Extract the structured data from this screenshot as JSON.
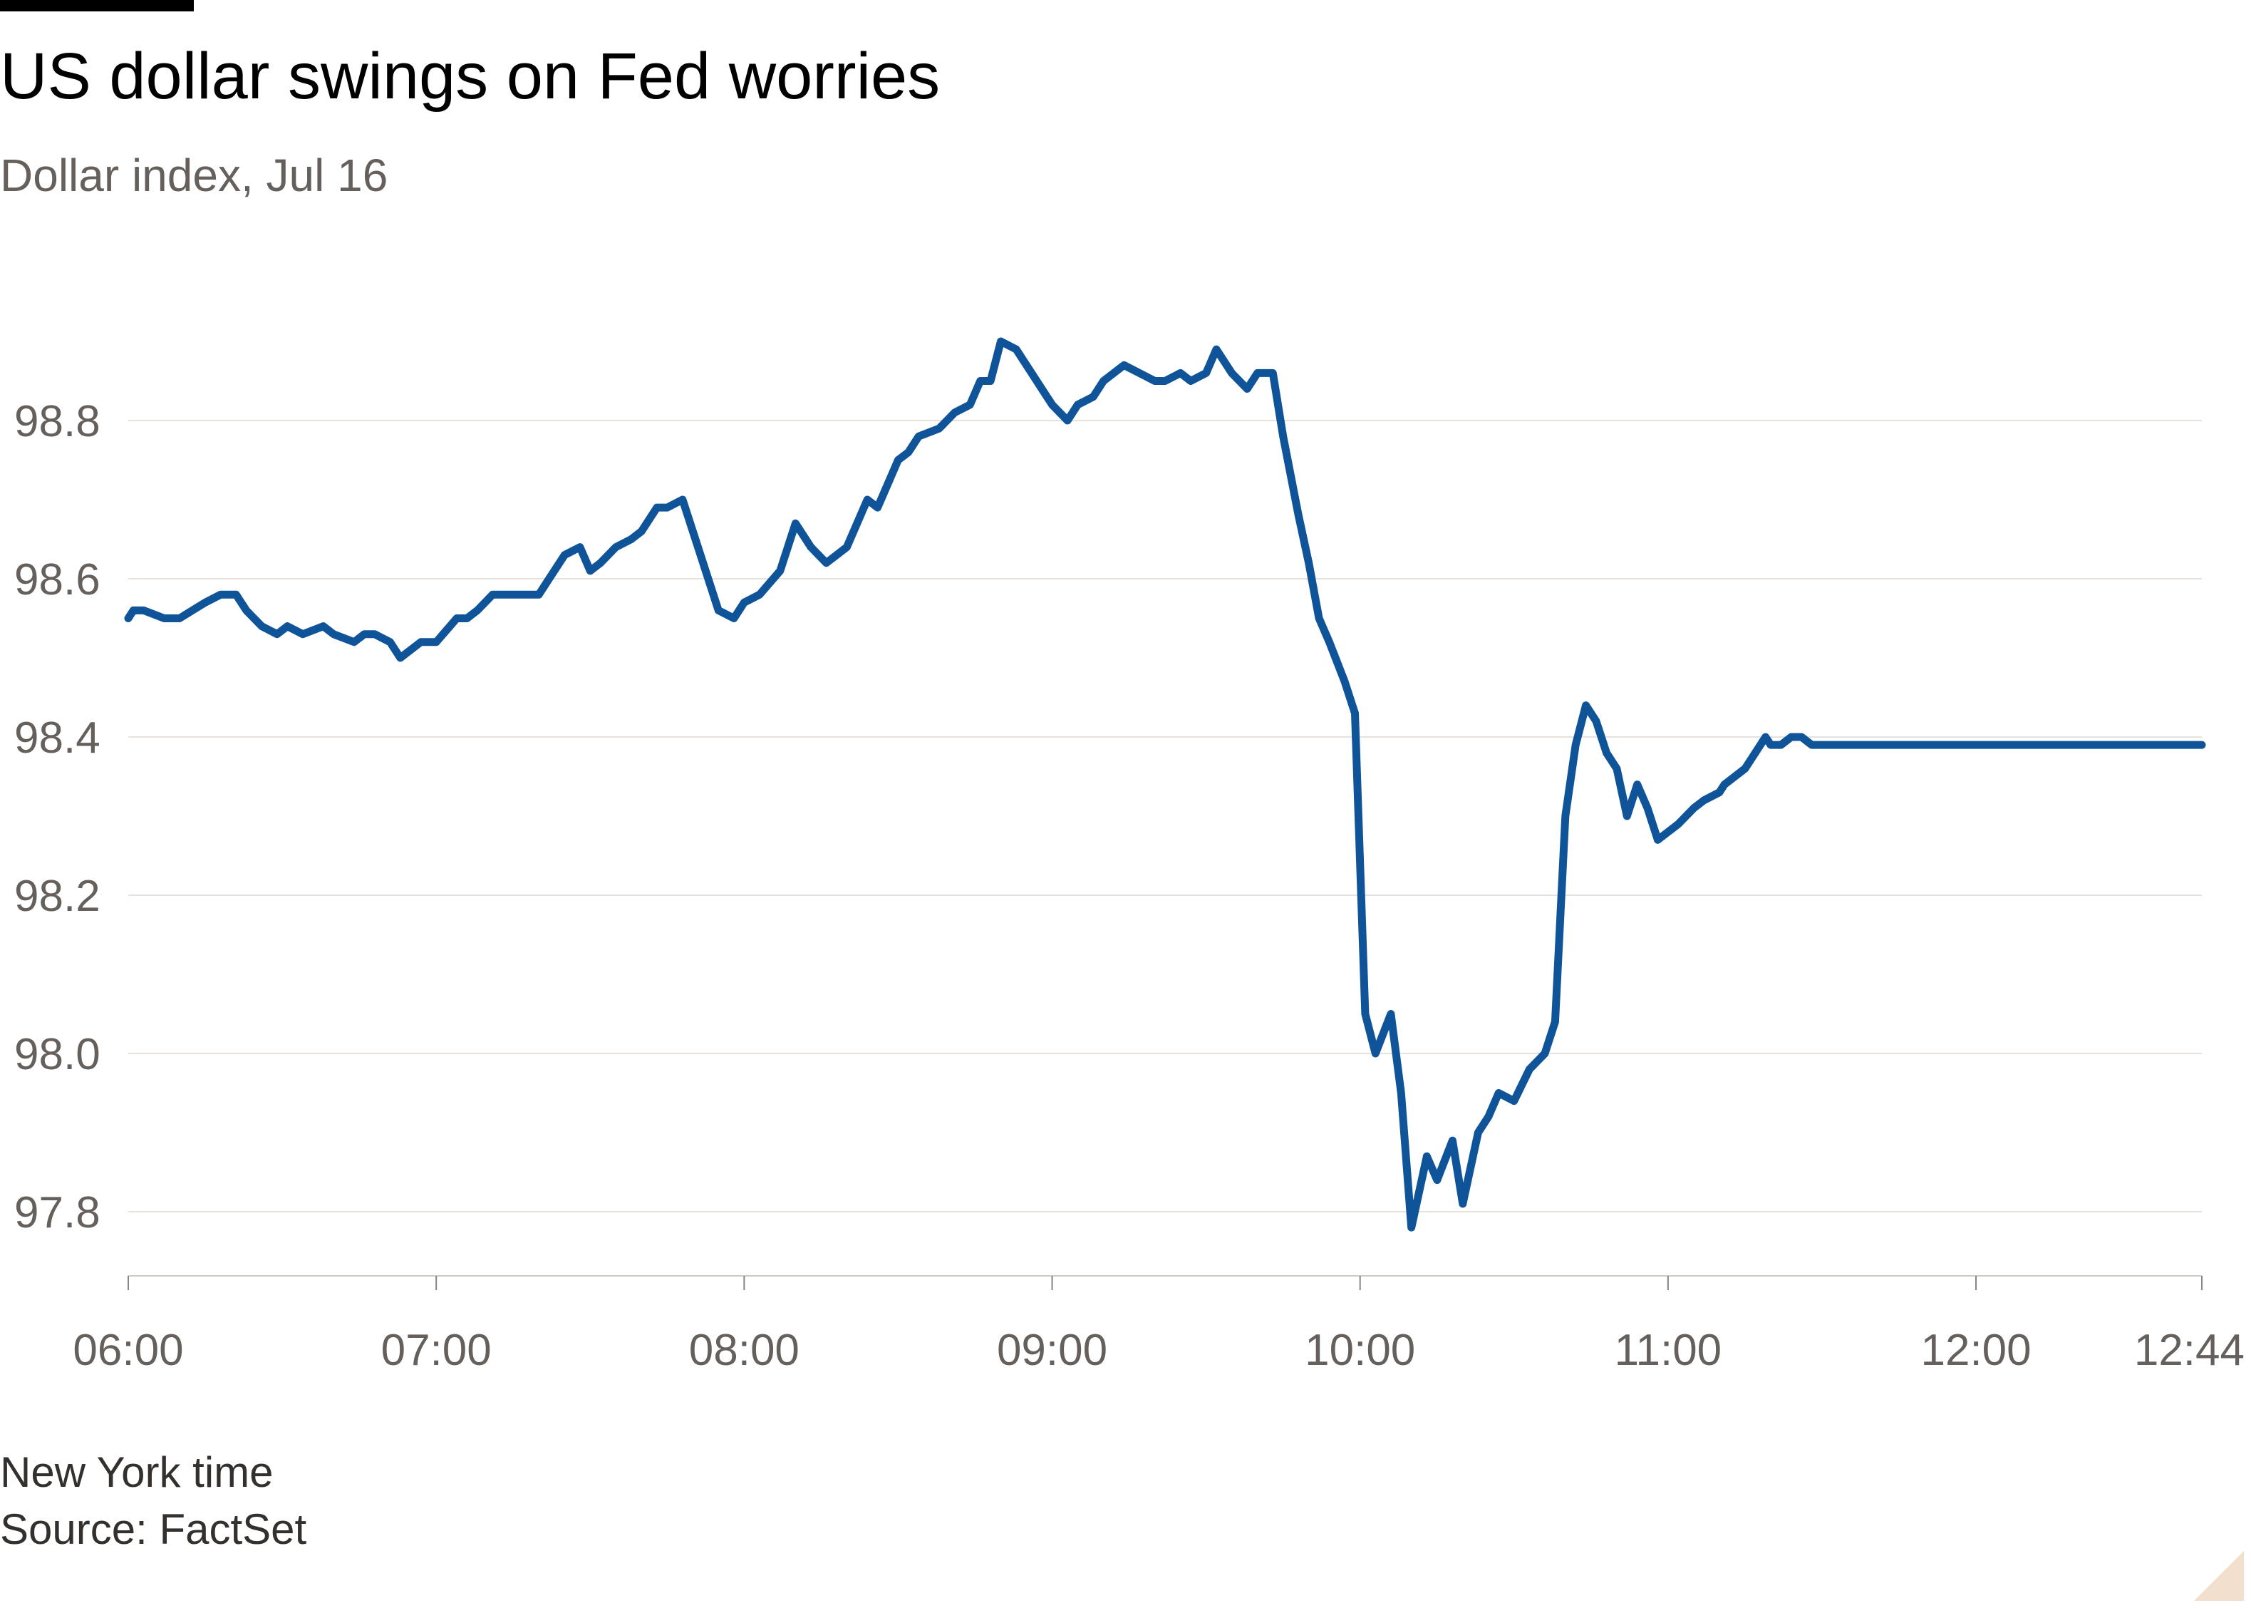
{
  "header": {
    "title": "US dollar swings on Fed worries",
    "subtitle": "Dollar index, Jul 16"
  },
  "footer": {
    "note": "New York time",
    "source": "Source: FactSet"
  },
  "colors": {
    "line": "#0f5499",
    "grid": "#e6e1dc",
    "axis_text": "#66605c"
  },
  "chart_data": {
    "type": "line",
    "title": "US dollar swings on Fed worries",
    "subtitle": "Dollar index, Jul 16",
    "xlabel": "",
    "ylabel": "",
    "ylim": [
      97.72,
      98.92
    ],
    "xlim": [
      "06:00",
      "12:44"
    ],
    "x_ticks": [
      "06:00",
      "07:00",
      "08:00",
      "09:00",
      "10:00",
      "11:00",
      "12:00",
      "12:44"
    ],
    "y_ticks": [
      "97.8",
      "98.0",
      "98.2",
      "98.4",
      "98.6",
      "98.8"
    ],
    "grid": true,
    "legend": "none",
    "series": [
      {
        "x": [
          "06:00",
          "06:01",
          "06:03",
          "06:07",
          "06:10",
          "06:15",
          "06:18",
          "06:21",
          "06:23",
          "06:26",
          "06:29",
          "06:31",
          "06:34",
          "06:38",
          "06:40",
          "06:44",
          "06:46",
          "06:48",
          "06:51",
          "06:53",
          "06:57",
          "07:00",
          "07:04",
          "07:06",
          "07:08",
          "07:11",
          "07:13",
          "07:18",
          "07:20",
          "07:22",
          "07:25",
          "07:28",
          "07:30",
          "07:32",
          "07:35",
          "07:38",
          "07:40",
          "07:43",
          "07:45",
          "07:48",
          "07:52",
          "07:55",
          "07:58",
          "08:00",
          "08:03",
          "08:07",
          "08:10",
          "08:13",
          "08:16",
          "08:20",
          "08:24",
          "08:26",
          "08:28",
          "08:30",
          "08:32",
          "08:34",
          "08:38",
          "08:41",
          "08:44",
          "08:46",
          "08:48",
          "08:50",
          "08:53",
          "08:56",
          "08:58",
          "09:00",
          "09:03",
          "09:05",
          "09:08",
          "09:10",
          "09:14",
          "09:17",
          "09:20",
          "09:22",
          "09:25",
          "09:27",
          "09:30",
          "09:32",
          "09:35",
          "09:38",
          "09:40",
          "09:43",
          "09:45",
          "09:48",
          "09:50",
          "09:52",
          "09:54",
          "09:57",
          "09:59",
          "10:01",
          "10:03",
          "10:06",
          "10:08",
          "10:10",
          "10:13",
          "10:15",
          "10:18",
          "10:20",
          "10:23",
          "10:25",
          "10:27",
          "10:30",
          "10:33",
          "10:36",
          "10:38",
          "10:40",
          "10:42",
          "10:44",
          "10:46",
          "10:48",
          "10:50",
          "10:52",
          "10:54",
          "10:56",
          "10:58",
          "11:00",
          "11:02",
          "11:05",
          "11:07",
          "11:10",
          "11:11",
          "11:13",
          "11:15",
          "11:17",
          "11:19",
          "11:20",
          "11:22",
          "11:24",
          "11:26",
          "11:28",
          "11:30",
          "11:33",
          "11:35",
          "11:37",
          "11:40",
          "11:42",
          "11:44",
          "11:46",
          "11:49",
          "11:51",
          "11:53",
          "11:55",
          "11:56",
          "11:58",
          "12:00",
          "12:02",
          "12:04",
          "12:06",
          "12:08",
          "12:10",
          "12:12",
          "12:14",
          "12:16",
          "12:19",
          "12:22",
          "12:25",
          "12:28",
          "12:31",
          "12:34",
          "12:37",
          "12:40",
          "12:42",
          "12:44"
        ],
        "y": [
          98.55,
          98.56,
          98.56,
          98.55,
          98.55,
          98.57,
          98.58,
          98.58,
          98.56,
          98.54,
          98.53,
          98.54,
          98.53,
          98.54,
          98.53,
          98.52,
          98.53,
          98.53,
          98.52,
          98.5,
          98.52,
          98.52,
          98.55,
          98.55,
          98.56,
          98.58,
          98.58,
          98.58,
          98.58,
          98.6,
          98.63,
          98.64,
          98.61,
          98.62,
          98.64,
          98.65,
          98.66,
          98.69,
          98.69,
          98.7,
          98.62,
          98.56,
          98.55,
          98.57,
          98.58,
          98.61,
          98.67,
          98.64,
          98.62,
          98.64,
          98.7,
          98.69,
          98.72,
          98.75,
          98.76,
          98.78,
          98.79,
          98.81,
          98.82,
          98.85,
          98.85,
          98.9,
          98.89,
          98.86,
          98.84,
          98.82,
          98.8,
          98.82,
          98.83,
          98.85,
          98.87,
          98.86,
          98.85,
          98.85,
          98.86,
          98.85,
          98.86,
          98.89,
          98.86,
          98.84,
          98.86,
          98.86,
          98.78,
          98.68,
          98.62,
          98.55,
          98.52,
          98.47,
          98.43,
          98.05,
          98.0,
          98.05,
          97.95,
          97.78,
          97.87,
          97.84,
          97.89,
          97.81,
          97.9,
          97.92,
          97.95,
          97.94,
          97.98,
          98.0,
          98.04,
          98.3,
          98.39,
          98.44,
          98.42,
          98.38,
          98.36,
          98.3,
          98.34,
          98.31,
          98.27,
          98.28,
          98.29,
          98.31,
          98.32,
          98.33,
          98.34,
          98.35,
          98.36,
          98.38,
          98.4,
          98.39,
          98.39,
          98.4,
          98.4,
          98.39,
          98.39,
          98.39,
          98.39,
          98.39,
          98.39,
          98.39,
          98.39,
          98.39,
          98.39,
          98.39,
          98.39,
          98.39,
          98.39,
          98.39,
          98.39,
          98.39,
          98.39,
          98.39,
          98.39,
          98.39,
          98.39,
          98.39,
          98.39,
          98.39,
          98.39,
          98.39,
          98.39,
          98.39,
          98.39,
          98.39,
          98.39,
          98.39,
          98.39
        ]
      }
    ]
  }
}
